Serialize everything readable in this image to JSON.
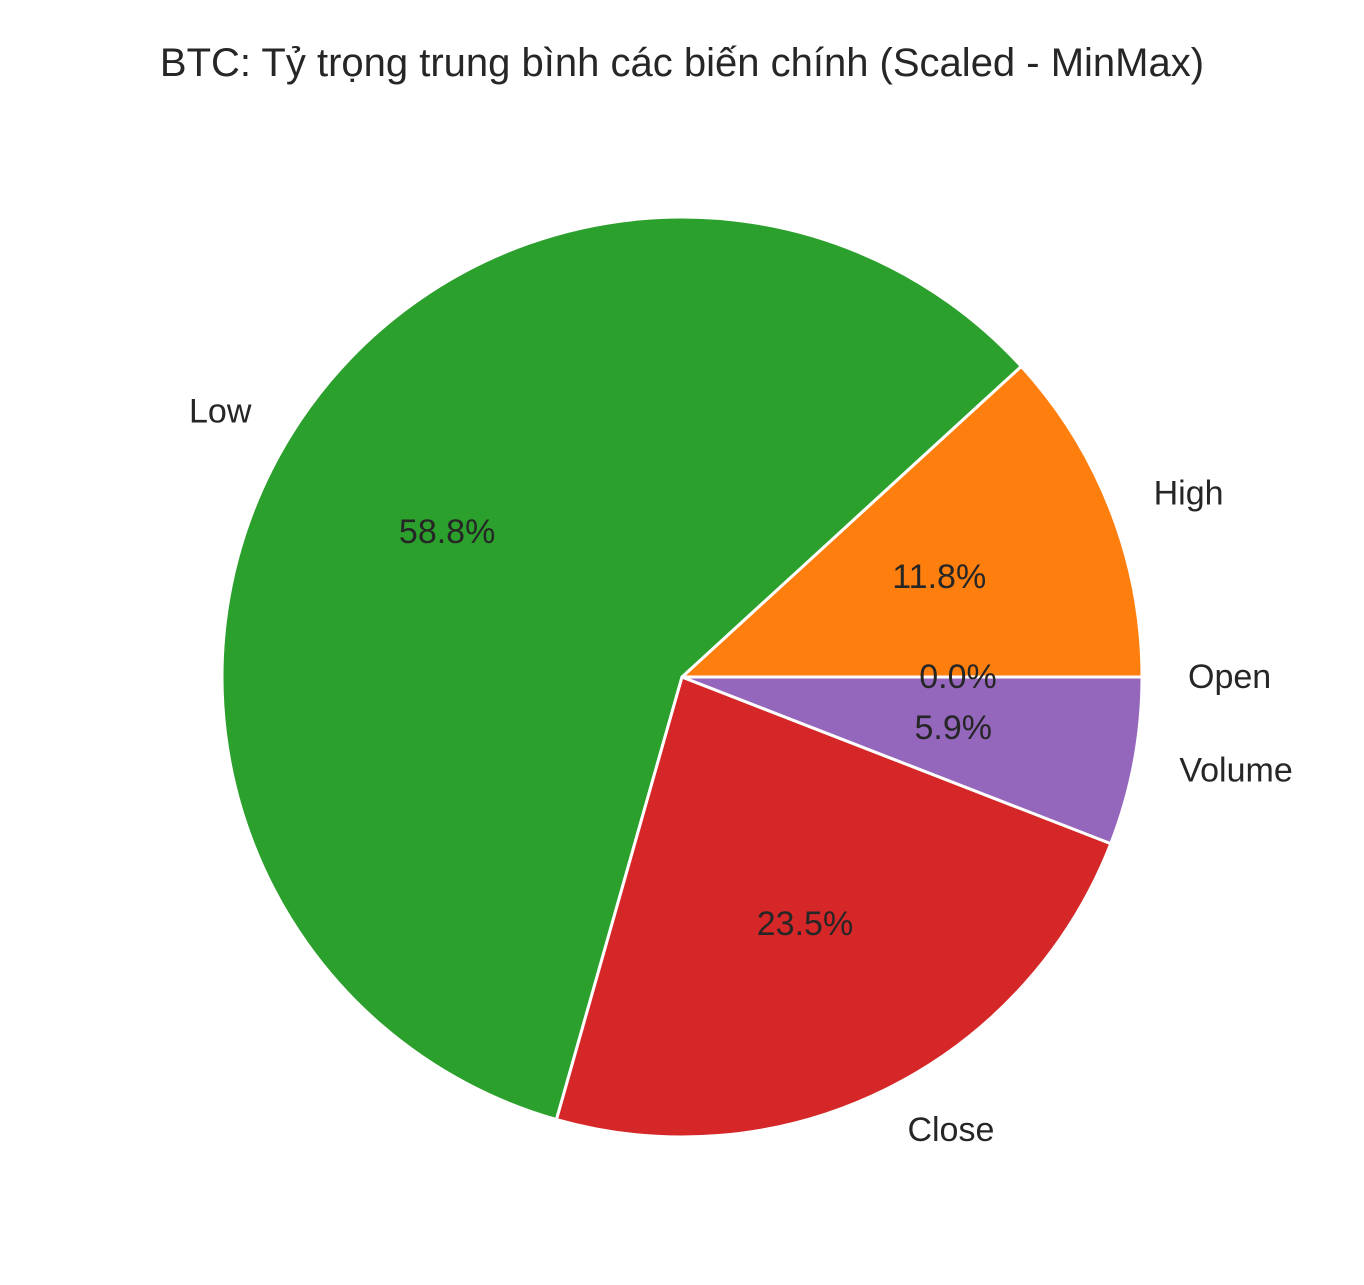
{
  "chart_data": {
    "type": "pie",
    "title": "BTC: Tỷ trọng trung bình các biến chính (Scaled - MinMax)",
    "start_angle_deg": 0,
    "direction": "counterclockwise",
    "slices": [
      {
        "label": "Open",
        "value": 0.0,
        "pct_label": "0.0%",
        "color": "#1f77b4"
      },
      {
        "label": "High",
        "value": 11.8,
        "pct_label": "11.8%",
        "color": "#ff7f0e"
      },
      {
        "label": "Low",
        "value": 58.8,
        "pct_label": "58.8%",
        "color": "#2ca02c"
      },
      {
        "label": "Close",
        "value": 23.5,
        "pct_label": "23.5%",
        "color": "#d62728"
      },
      {
        "label": "Volume",
        "value": 5.9,
        "pct_label": "5.9%",
        "color": "#9467bd"
      }
    ]
  }
}
